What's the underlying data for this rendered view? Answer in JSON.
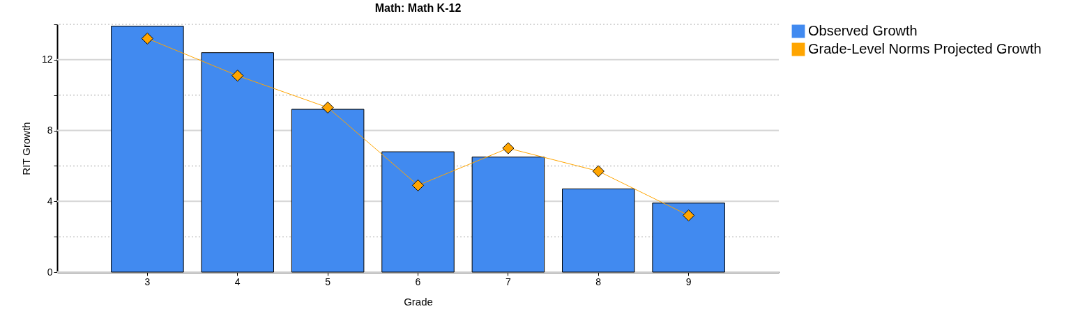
{
  "chart_data": {
    "type": "bar",
    "title": "Math: Math K-12",
    "xlabel": "Grade",
    "ylabel": "RIT Growth",
    "categories": [
      "3",
      "4",
      "5",
      "6",
      "7",
      "8",
      "9"
    ],
    "series": [
      {
        "name": "Observed Growth",
        "color": "#418af0",
        "values": [
          13.9,
          12.4,
          9.2,
          6.8,
          6.5,
          4.7,
          3.9
        ]
      },
      {
        "name": "Grade-Level Norms Projected Growth",
        "type": "line",
        "color": "#ffa500",
        "marker": "diamond",
        "values": [
          13.2,
          11.1,
          9.3,
          4.9,
          7.0,
          5.7,
          3.2
        ]
      }
    ],
    "ylim": [
      0,
      14
    ],
    "yticks": [
      0,
      {
        "value": 2,
        "label": null
      },
      4,
      {
        "value": 6,
        "label": null
      },
      8,
      {
        "value": 10,
        "label": null
      },
      12,
      {
        "value": 14,
        "label": null
      }
    ],
    "grid": "y",
    "legend": "right"
  }
}
